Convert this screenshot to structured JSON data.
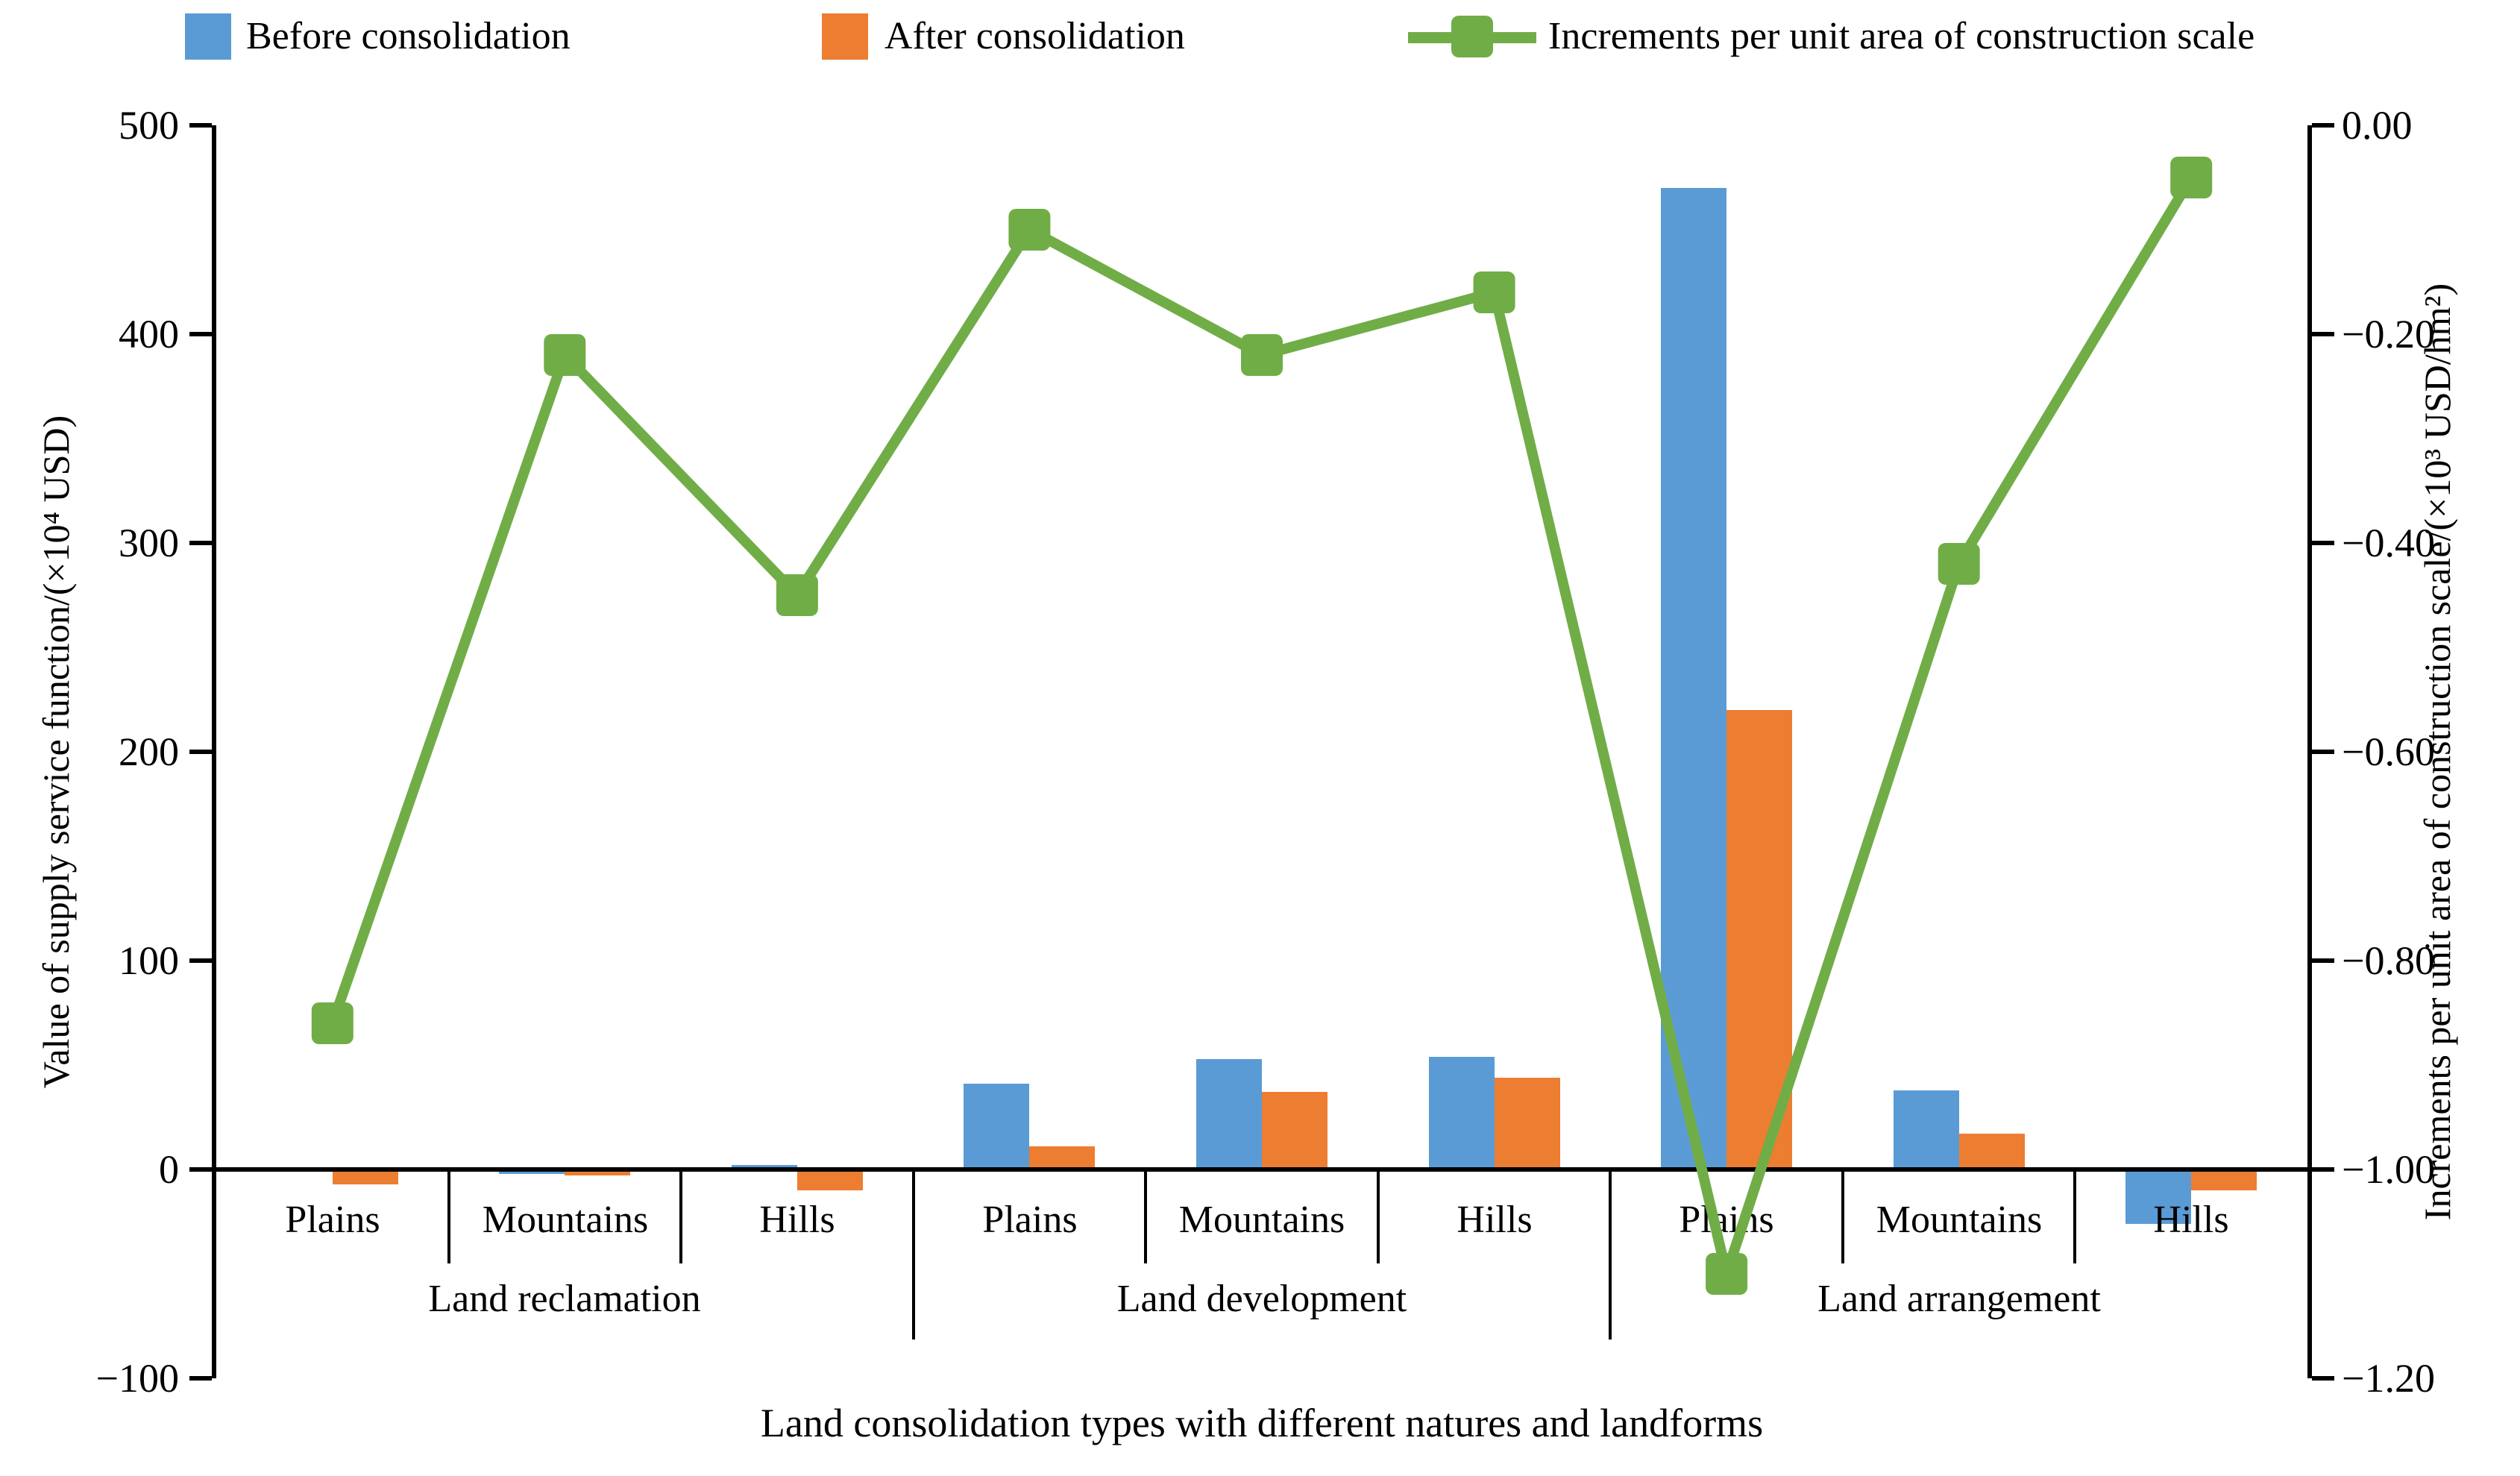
{
  "colors": {
    "before": "#5B9BD5",
    "after": "#ED7D31",
    "increment": "#70AD47",
    "axis": "#000000",
    "background": "#FFFFFF"
  },
  "legend": {
    "items": [
      {
        "label": "Before consolidation",
        "swatch": "bar-square"
      },
      {
        "label": "After consolidation",
        "swatch": "bar-square"
      },
      {
        "label": "Increments per unit area of construction scale",
        "swatch": "line-with-square-marker"
      }
    ]
  },
  "left_axis": {
    "title": "Value of supply service function/(×10⁴ USD)",
    "tick_labels": [
      "500",
      "400",
      "300",
      "200",
      "100",
      "0",
      "−100"
    ]
  },
  "right_axis": {
    "title": "Increments per unit area of construction scale/(×10³ USD/hm²)",
    "tick_labels": [
      "0.00",
      "−0.20",
      "−0.40",
      "−0.60",
      "−0.80",
      "−1.00",
      "−1.20"
    ]
  },
  "x_axis": {
    "title": "Land consolidation types with different natures and landforms",
    "category_labels": [
      "Plains",
      "Mountains",
      "Hills",
      "Plains",
      "Mountains",
      "Hills",
      "Plains",
      "Mountains",
      "Hills"
    ],
    "group_labels": [
      "Land reclamation",
      "Land development",
      "Land arrangement"
    ]
  },
  "chart_data": {
    "type": "bar+line",
    "categories": [
      "Plains",
      "Mountains",
      "Hills",
      "Plains",
      "Mountains",
      "Hills",
      "Plains",
      "Mountains",
      "Hills"
    ],
    "category_groups": [
      "Land reclamation",
      "Land reclamation",
      "Land reclamation",
      "Land development",
      "Land development",
      "Land development",
      "Land arrangement",
      "Land arrangement",
      "Land arrangement"
    ],
    "series": [
      {
        "name": "Before consolidation",
        "type": "bar",
        "yaxis": "left",
        "color": "#5B9BD5",
        "values": [
          -1,
          -2,
          2,
          41,
          53,
          54,
          470,
          38,
          -26
        ]
      },
      {
        "name": "After consolidation",
        "type": "bar",
        "yaxis": "left",
        "color": "#ED7D31",
        "values": [
          -7,
          -3,
          -10,
          11,
          37,
          44,
          220,
          17,
          -10
        ]
      },
      {
        "name": "Increments per unit area of construction scale",
        "type": "line",
        "yaxis": "right",
        "color": "#70AD47",
        "marker": "square",
        "values": [
          -0.86,
          -0.22,
          -0.45,
          -0.1,
          -0.22,
          -0.16,
          -1.1,
          -0.42,
          -0.05
        ]
      }
    ],
    "left_axis": {
      "label": "Value of supply service function/(×10⁴ USD)",
      "range": [
        -100,
        500
      ],
      "tick_step": 100
    },
    "right_axis": {
      "label": "Increments per unit area of construction scale/(×10³ USD/hm²)",
      "range": [
        -1.2,
        0.0
      ],
      "tick_step": 0.2
    },
    "xlabel": "Land consolidation types with different natures and landforms",
    "legend_position": "top",
    "grid": false
  }
}
